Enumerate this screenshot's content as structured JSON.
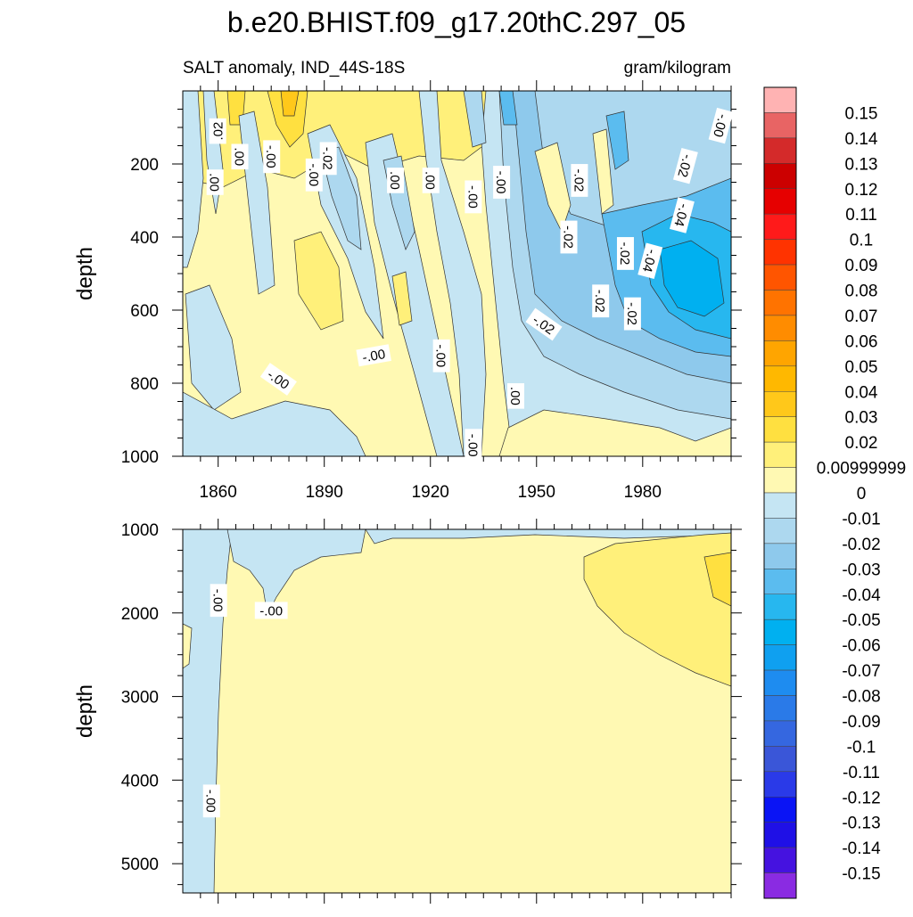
{
  "title": "b.e20.BHIST.f09_g17.20thC.297_05",
  "subtitle_left": "SALT anomaly, IND_44S-18S",
  "subtitle_right": "gram/kilogram",
  "chart_data": [
    {
      "type": "heatmap",
      "panel": "upper",
      "variable": "SALT anomaly",
      "region": "IND_44S-18S",
      "units": "gram/kilogram",
      "ylabel": "depth",
      "xlim": [
        1850,
        2005
      ],
      "ylim": [
        0,
        1000
      ],
      "y_reversed": true,
      "x_ticks": [
        1860,
        1890,
        1920,
        1950,
        1980
      ],
      "x_tick_labels": [
        "1860",
        "1890",
        "1920",
        "1950",
        "1980"
      ],
      "y_ticks": [
        200,
        400,
        600,
        800,
        1000
      ],
      "y_tick_labels": [
        "200",
        "400",
        "600",
        "800",
        "1000"
      ],
      "contour_labels": [
        {
          "text": ".02",
          "year": 1860,
          "depth": 110,
          "angle": -90
        },
        {
          "text": ".00",
          "year": 1866,
          "depth": 180,
          "angle": 90
        },
        {
          "text": "-.00",
          "year": 1875,
          "depth": 180,
          "angle": 90
        },
        {
          "text": "-.02",
          "year": 1891,
          "depth": 185,
          "angle": 90
        },
        {
          "text": ".00",
          "year": 1859,
          "depth": 250,
          "angle": 90
        },
        {
          "text": "-.00",
          "year": 1887,
          "depth": 230,
          "angle": 90
        },
        {
          "text": ".00",
          "year": 1910,
          "depth": 245,
          "angle": 90
        },
        {
          "text": ".00",
          "year": 1920,
          "depth": 245,
          "angle": 90
        },
        {
          "text": "-.00",
          "year": 1940,
          "depth": 250,
          "angle": 90
        },
        {
          "text": "-.00",
          "year": 1932,
          "depth": 290,
          "angle": 90
        },
        {
          "text": "-.02",
          "year": 1959,
          "depth": 400,
          "angle": 90
        },
        {
          "text": "-.02",
          "year": 1968,
          "depth": 575,
          "angle": 90
        },
        {
          "text": "-.02",
          "year": 1952,
          "depth": 640,
          "angle": 35
        },
        {
          "text": "-.02",
          "year": 1977,
          "depth": 610,
          "angle": 90
        },
        {
          "text": "-.02",
          "year": 1975,
          "depth": 445,
          "angle": 90
        },
        {
          "text": "-.04",
          "year": 1982,
          "depth": 465,
          "angle": 105
        },
        {
          "text": "-.04",
          "year": 1991,
          "depth": 340,
          "angle": 105
        },
        {
          "text": "-.02",
          "year": 1992,
          "depth": 205,
          "angle": 105
        },
        {
          "text": "-.00",
          "year": 2002,
          "depth": 95,
          "angle": 105
        },
        {
          "text": "-.02",
          "year": 1962,
          "depth": 245,
          "angle": 90
        },
        {
          "text": "-.00",
          "year": 1904,
          "depth": 725,
          "angle": -10
        },
        {
          "text": "-.00",
          "year": 1923,
          "depth": 725,
          "angle": 90
        },
        {
          "text": "-.00",
          "year": 1877,
          "depth": 790,
          "angle": 35
        },
        {
          "text": ".00",
          "year": 1944,
          "depth": 835,
          "angle": 90
        },
        {
          "text": "-.00",
          "year": 1932,
          "depth": 970,
          "angle": 90
        }
      ]
    },
    {
      "type": "heatmap",
      "panel": "lower",
      "variable": "SALT anomaly",
      "region": "IND_44S-18S",
      "units": "gram/kilogram",
      "ylabel": "depth",
      "xlim": [
        1850,
        2005
      ],
      "ylim": [
        1000,
        5350
      ],
      "y_reversed": true,
      "y_ticks": [
        1000,
        2000,
        3000,
        4000,
        5000
      ],
      "y_tick_labels": [
        "1000",
        "2000",
        "3000",
        "4000",
        "5000"
      ],
      "contour_labels": [
        {
          "text": "-.00",
          "year": 1860,
          "depth": 1850,
          "angle": 90
        },
        {
          "text": "-.00",
          "year": 1875,
          "depth": 1975,
          "angle": 0
        },
        {
          "text": "-.00",
          "year": 1858,
          "depth": 4250,
          "angle": 90
        }
      ]
    }
  ],
  "colorbar": {
    "labels": [
      "0.15",
      "0.14",
      "0.13",
      "0.12",
      "0.11",
      "0.1",
      "0.09",
      "0.08",
      "0.07",
      "0.06",
      "0.05",
      "0.04",
      "0.03",
      "0.02",
      "0.00999999",
      "0",
      "-0.01",
      "-0.02",
      "-0.03",
      "-0.04",
      "-0.05",
      "-0.06",
      "-0.07",
      "-0.08",
      "-0.09",
      "-0.1",
      "-0.11",
      "-0.12",
      "-0.13",
      "-0.14",
      "-0.15"
    ],
    "colors": [
      "#ffb3b3",
      "#e86464",
      "#d42a2a",
      "#cc0000",
      "#e60000",
      "#ff1a1a",
      "#ff3300",
      "#ff5500",
      "#ff7300",
      "#ff8c00",
      "#ffa500",
      "#ffb800",
      "#ffc81a",
      "#ffe040",
      "#fff07a",
      "#fff9b3",
      "#c5e5f3",
      "#add8ef",
      "#8ec9ec",
      "#5bbcef",
      "#27b7ef",
      "#00b0f0",
      "#0fa0f0",
      "#1e8cf0",
      "#2a7ae8",
      "#3567e0",
      "#3a56d8",
      "#2a3ae8",
      "#0a14f5",
      "#1f10e6",
      "#4512e0",
      "#8a2be2"
    ]
  }
}
